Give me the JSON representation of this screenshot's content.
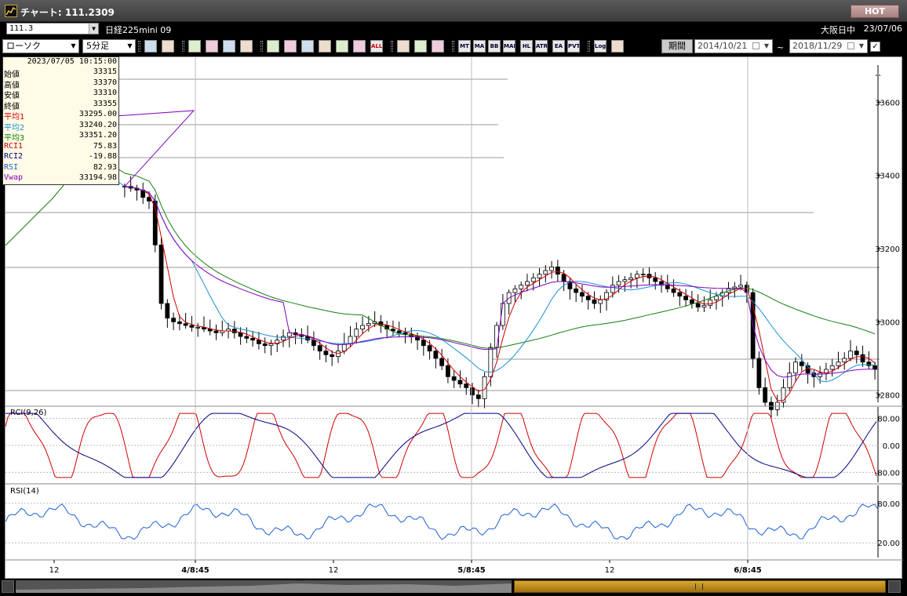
{
  "window": {
    "title": "チャート: 111.2309",
    "hot_label": "HOT"
  },
  "symbol_bar": {
    "symbol_value": "111.3",
    "contract_name": "日経225mini 09",
    "session": "大阪日中",
    "date": "23/07/06"
  },
  "toolbar": {
    "chart_type": "ローソク",
    "interval": "5分足",
    "buttons": [
      "zoom",
      "crosshair",
      "trend",
      "search",
      "table",
      "trade",
      "disabled",
      "line",
      "cursor",
      "redo",
      "bar-left",
      "bar-right",
      "ALL",
      "gear",
      "wrench",
      "palette",
      "MT",
      "MA",
      "BB",
      "MAE",
      "HL",
      "ATR",
      "EA",
      "PVT",
      "Log",
      "export"
    ],
    "period_label": "期間",
    "start_date": "2014/10/21",
    "end_date": "2018/11/29",
    "range_separator": "~"
  },
  "info_panel": {
    "timestamp": "2023/07/05  10:15:00",
    "rows": [
      {
        "key": "始値",
        "value": "33315",
        "color": "#000000"
      },
      {
        "key": "高値",
        "value": "33370",
        "color": "#000000"
      },
      {
        "key": "安値",
        "value": "33310",
        "color": "#000000"
      },
      {
        "key": "終値",
        "value": "33355",
        "color": "#000000"
      },
      {
        "key": "平均1",
        "value": "33295.00",
        "color": "#d00000"
      },
      {
        "key": "平均2",
        "value": "33240.20",
        "color": "#1a8fd8"
      },
      {
        "key": "平均3",
        "value": "33351.20",
        "color": "#108010"
      },
      {
        "key": "RCI1",
        "value": "75.83",
        "color": "#d00000"
      },
      {
        "key": "RCI2",
        "value": "-19.88",
        "color": "#000080"
      },
      {
        "key": "RSI",
        "value": "82.93",
        "color": "#1a5fd8"
      },
      {
        "key": "Vwap",
        "value": "33194.98",
        "color": "#8000c0"
      }
    ]
  },
  "chart_data": [
    {
      "type": "candlestick",
      "y_ticks": [
        "33600",
        "33400",
        "33200",
        "33000",
        "32800"
      ],
      "ylim": [
        32780,
        33680
      ],
      "x_tick_labels": [
        "12",
        "4/8:45",
        "12",
        "5/8:45",
        "12",
        "6/8:45"
      ],
      "series": [
        {
          "name": "平均1",
          "color": "#d00000"
        },
        {
          "name": "平均2",
          "color": "#1a8fd8"
        },
        {
          "name": "平均3",
          "color": "#108010"
        },
        {
          "name": "Vwap",
          "color": "#8000c0"
        }
      ],
      "close_path": [
        33370,
        33365,
        33360,
        33340,
        33330,
        33210,
        33050,
        33010,
        33000,
        32995,
        32990,
        32985,
        32985,
        32980,
        32975,
        32970,
        32975,
        32980,
        32970,
        32960,
        32955,
        32950,
        32940,
        32935,
        32940,
        32950,
        32960,
        32970,
        32965,
        32960,
        32950,
        32935,
        32920,
        32910,
        32905,
        32920,
        32940,
        32960,
        32980,
        32990,
        32995,
        33000,
        32990,
        32980,
        32975,
        32970,
        32965,
        32960,
        32950,
        32935,
        32920,
        32900,
        32880,
        32850,
        32840,
        32830,
        32820,
        32800,
        32790,
        32850,
        32930,
        32990,
        33050,
        33080,
        33090,
        33100,
        33110,
        33120,
        33130,
        33140,
        33150,
        33130,
        33110,
        33090,
        33080,
        33070,
        33060,
        33050,
        33060,
        33080,
        33100,
        33110,
        33115,
        33120,
        33130,
        33130,
        33120,
        33110,
        33100,
        33090,
        33080,
        33070,
        33060,
        33050,
        33040,
        33045,
        33060,
        33070,
        33080,
        33090,
        33095,
        33100,
        33080,
        32900,
        32820,
        32780,
        32760,
        32780,
        32820,
        32860,
        32890,
        32880,
        32860,
        32850,
        32860,
        32870,
        32880,
        32890,
        32900,
        32920,
        32910,
        32890,
        32880,
        32870
      ]
    },
    {
      "type": "line",
      "title": "RCI(9,26)",
      "y_ticks": [
        "80.00",
        "0.00",
        "-80.00"
      ],
      "ylim": [
        -100,
        100
      ],
      "series": [
        {
          "name": "RCI1",
          "color": "#d00000"
        },
        {
          "name": "RCI2",
          "color": "#000080"
        }
      ]
    },
    {
      "type": "line",
      "title": "RSI(14)",
      "y_ticks": [
        "80.00",
        "20.00"
      ],
      "ylim": [
        0,
        100
      ],
      "series": [
        {
          "name": "RSI",
          "color": "#1a5fd8"
        }
      ]
    }
  ]
}
